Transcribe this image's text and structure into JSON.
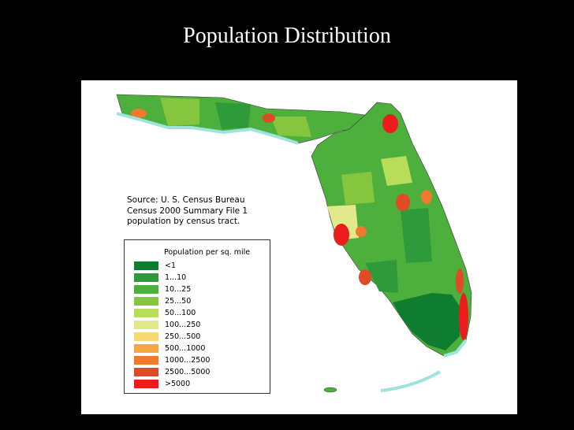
{
  "slide": {
    "title": "Population Distribution"
  },
  "source": {
    "line1": "Source: U. S. Census Bureau",
    "line2": "Census 2000 Summary File 1",
    "line3": "population by census tract."
  },
  "legend": {
    "title": "Population per sq. mile",
    "items": [
      {
        "label": "<1",
        "color": "#0f7d2f"
      },
      {
        "label": "1...10",
        "color": "#2f9a3a"
      },
      {
        "label": "10...25",
        "color": "#4daf3c"
      },
      {
        "label": "25...50",
        "color": "#86c63f"
      },
      {
        "label": "50...100",
        "color": "#b8dd5a"
      },
      {
        "label": "100...250",
        "color": "#e2e98a"
      },
      {
        "label": "250...500",
        "color": "#f7d873"
      },
      {
        "label": "500...1000",
        "color": "#f5a544"
      },
      {
        "label": "1000...2500",
        "color": "#ee7a2e"
      },
      {
        "label": "2500...5000",
        "color": "#e04a24"
      },
      {
        "label": ">5000",
        "color": "#ec1c1c"
      }
    ]
  },
  "colors": {
    "background": "#000000",
    "water": "#9fe3df",
    "panel": "#ffffff"
  }
}
